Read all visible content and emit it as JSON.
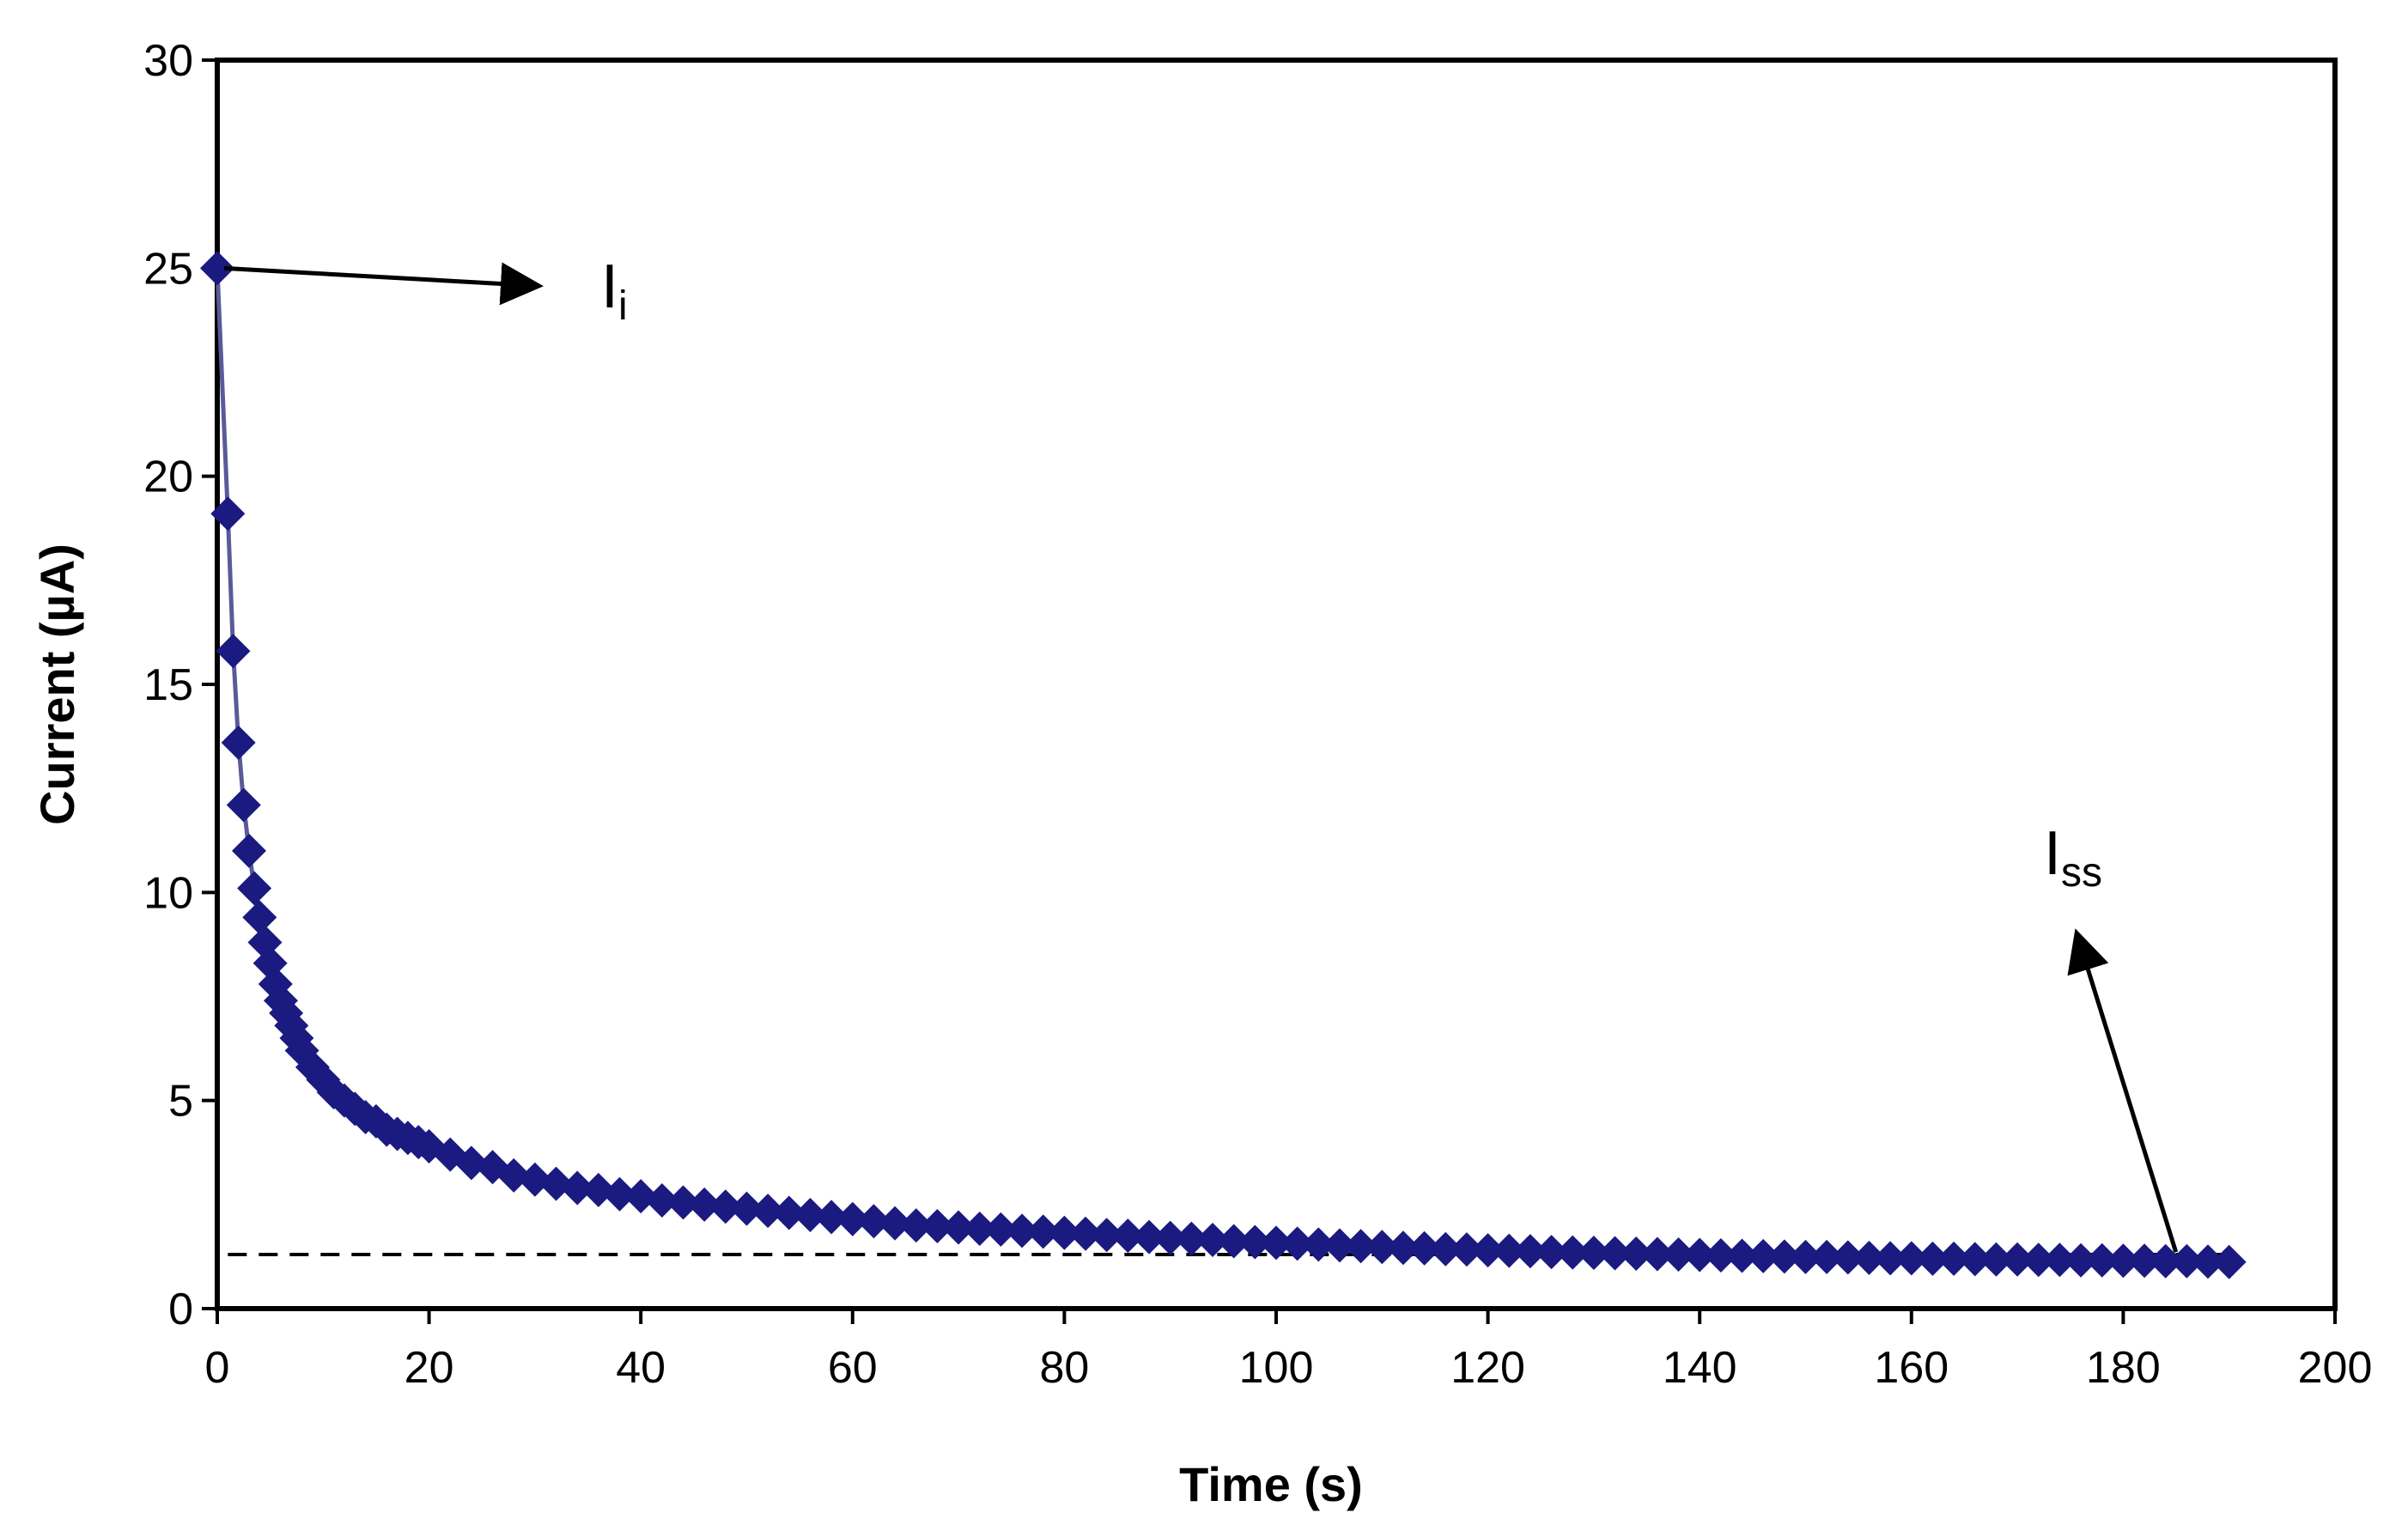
{
  "chart_data": {
    "type": "scatter",
    "xlabel": "Time (s)",
    "ylabel": "Current (µA)",
    "xlim": [
      0,
      200
    ],
    "ylim": [
      0,
      30
    ],
    "xticks": [
      0,
      20,
      40,
      60,
      80,
      100,
      120,
      140,
      160,
      180,
      200
    ],
    "yticks": [
      0,
      5,
      10,
      15,
      20,
      25,
      30
    ],
    "grid": false,
    "legend": "none",
    "marker": "diamond",
    "series_color": "#1a1a80",
    "line_color": "#5a5a9a",
    "steady_state_line": {
      "y": 1.3,
      "x_range": [
        1,
        190
      ],
      "style": "dashed"
    },
    "series": [
      {
        "x": [
          0,
          1,
          1.5,
          2,
          2.5,
          3,
          3.5,
          4,
          4.5,
          5,
          5.5,
          6,
          6.5,
          7,
          7.5,
          8,
          9,
          10,
          11,
          12,
          13,
          14,
          15,
          16,
          17,
          18,
          19,
          20,
          22,
          24,
          26,
          28,
          30,
          32,
          34,
          36,
          38,
          40,
          42,
          44,
          46,
          48,
          50,
          52,
          54,
          56,
          58,
          60,
          62,
          64,
          66,
          68,
          70,
          72,
          74,
          76,
          78,
          80,
          82,
          84,
          86,
          88,
          90,
          92,
          94,
          96,
          98,
          100,
          102,
          104,
          106,
          108,
          110,
          112,
          114,
          116,
          118,
          120,
          122,
          124,
          126,
          128,
          130,
          132,
          134,
          136,
          138,
          140,
          142,
          144,
          146,
          148,
          150,
          152,
          154,
          156,
          158,
          160,
          162,
          164,
          166,
          168,
          170,
          172,
          174,
          176,
          178,
          180,
          182,
          184,
          186,
          188,
          190
        ],
        "y": [
          25,
          19.1,
          15.8,
          13.6,
          12.1,
          11.0,
          10.1,
          9.4,
          8.8,
          8.3,
          7.8,
          7.4,
          7.1,
          6.8,
          6.5,
          6.2,
          5.8,
          5.5,
          5.2,
          5.0,
          4.8,
          4.6,
          4.5,
          4.3,
          4.2,
          4.1,
          4.0,
          3.9,
          3.7,
          3.5,
          3.4,
          3.2,
          3.1,
          3.0,
          2.9,
          2.85,
          2.75,
          2.7,
          2.6,
          2.55,
          2.5,
          2.45,
          2.4,
          2.35,
          2.3,
          2.25,
          2.2,
          2.15,
          2.1,
          2.05,
          2.0,
          1.98,
          1.95,
          1.92,
          1.9,
          1.87,
          1.85,
          1.82,
          1.8,
          1.77,
          1.75,
          1.72,
          1.7,
          1.68,
          1.65,
          1.62,
          1.6,
          1.58,
          1.56,
          1.54,
          1.52,
          1.5,
          1.48,
          1.46,
          1.45,
          1.43,
          1.42,
          1.4,
          1.39,
          1.38,
          1.36,
          1.35,
          1.34,
          1.33,
          1.32,
          1.31,
          1.3,
          1.29,
          1.28,
          1.27,
          1.26,
          1.25,
          1.24,
          1.24,
          1.23,
          1.22,
          1.21,
          1.21,
          1.2,
          1.2,
          1.19,
          1.18,
          1.18,
          1.17,
          1.17,
          1.16,
          1.16,
          1.15,
          1.15,
          1.14,
          1.14,
          1.13,
          1.12
        ]
      }
    ],
    "annotations": [
      {
        "id": "initial",
        "main": "I",
        "sub": "i",
        "point": [
          0,
          25
        ]
      },
      {
        "id": "steady",
        "main": "I",
        "sub": "ss",
        "point": [
          184,
          1.4
        ]
      }
    ]
  }
}
